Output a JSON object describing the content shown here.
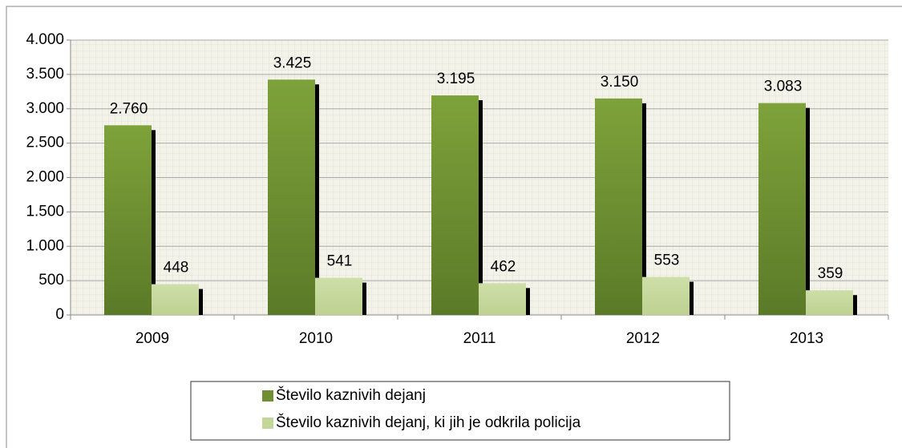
{
  "chart_data": {
    "type": "bar",
    "categories": [
      "2009",
      "2010",
      "2011",
      "2012",
      "2013"
    ],
    "series": [
      {
        "name": "Število kaznivih dejanj",
        "color": "#6f8f32",
        "values": [
          2760,
          3425,
          3195,
          3150,
          3083
        ],
        "value_labels": [
          "2.760",
          "3.425",
          "3.195",
          "3.150",
          "3.083"
        ]
      },
      {
        "name": "Število kaznivih dejanj, ki jih je odkrila policija",
        "color": "#c4d79b",
        "values": [
          448,
          541,
          462,
          553,
          359
        ]
      }
    ],
    "ylim": [
      0,
      4000
    ],
    "yticks": [
      0,
      {
        "value": 500,
        "label": "500"
      },
      {
        "value": 1000,
        "label": "1.000"
      },
      {
        "value": 1500,
        "label": "1.500"
      },
      {
        "value": 2000,
        "label": "2.000"
      },
      {
        "value": 2500,
        "label": "2.500"
      },
      {
        "value": 3000,
        "label": "3.000"
      },
      {
        "value": 3500,
        "label": "3.500"
      },
      {
        "value": 4000,
        "label": "4.000"
      }
    ],
    "grid": true,
    "legend": "bottom"
  }
}
